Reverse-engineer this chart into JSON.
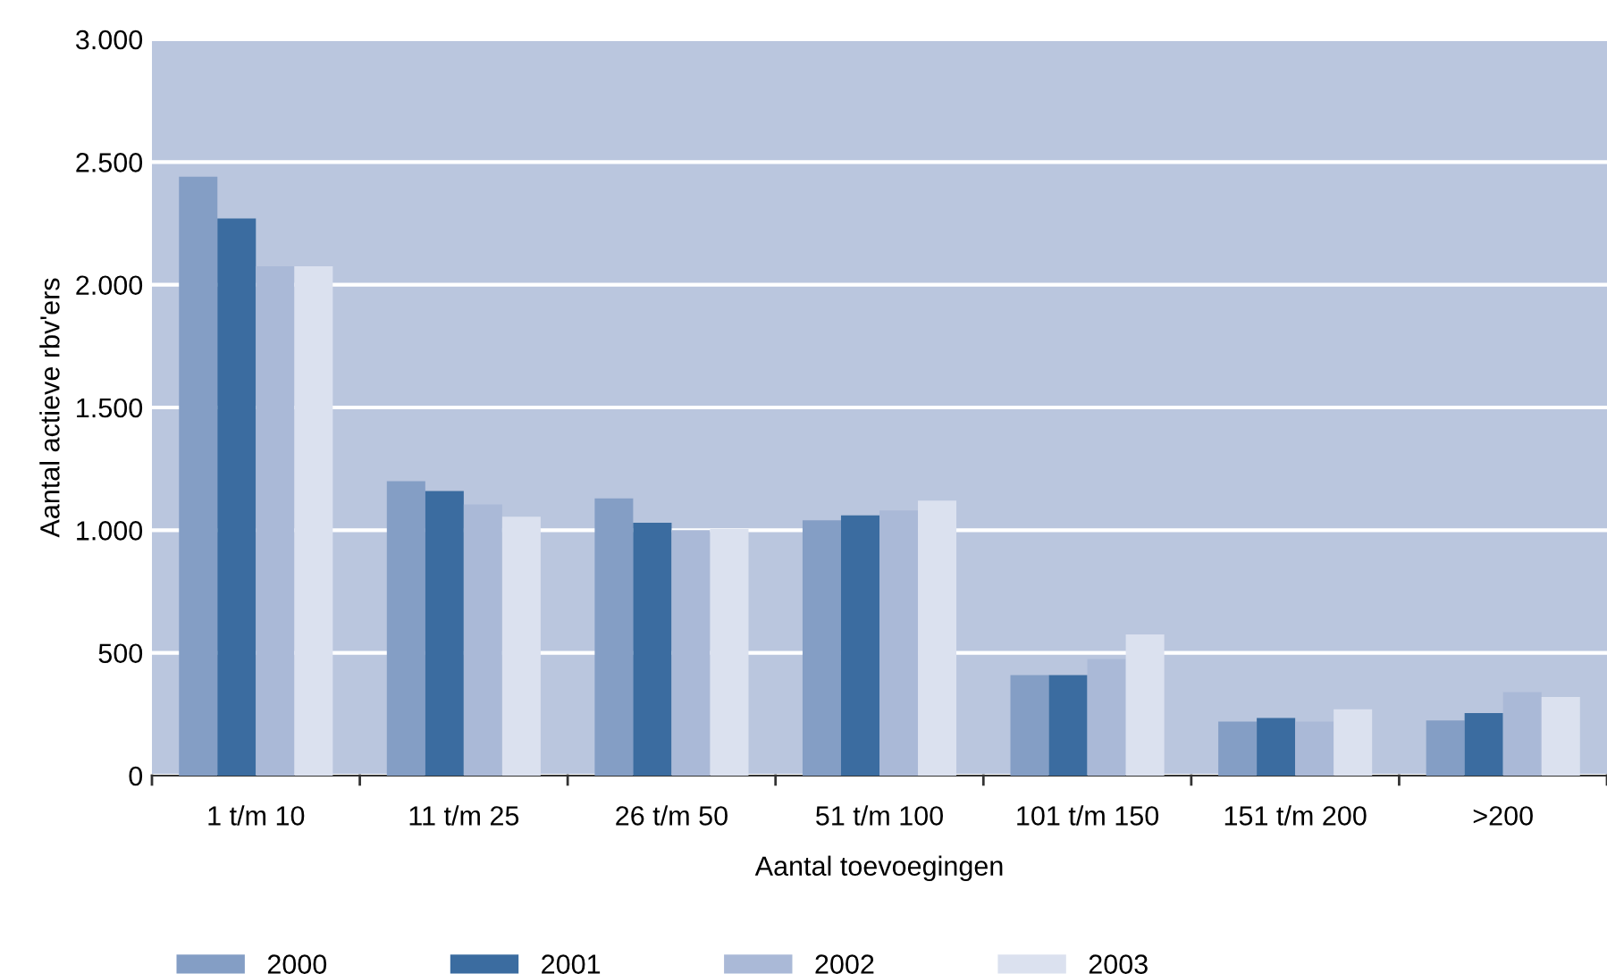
{
  "chart_data": {
    "type": "bar",
    "xlabel": "Aantal toevoegingen",
    "ylabel": "Aantal actieve rbv'ers",
    "categories": [
      "1 t/m 10",
      "11 t/m 25",
      "26 t/m 50",
      "51 t/m 100",
      "101 t/m 150",
      "151 t/m 200",
      ">200"
    ],
    "series": [
      {
        "name": "2000",
        "color": "#849ec5",
        "values": [
          2440,
          1200,
          1130,
          1040,
          410,
          220,
          225
        ]
      },
      {
        "name": "2001",
        "color": "#3b6ca0",
        "values": [
          2270,
          1160,
          1030,
          1060,
          410,
          235,
          255
        ]
      },
      {
        "name": "2002",
        "color": "#aab9d7",
        "values": [
          2075,
          1105,
          1000,
          1080,
          475,
          220,
          340
        ]
      },
      {
        "name": "2003",
        "color": "#dbe1ef",
        "values": [
          2075,
          1055,
          1005,
          1120,
          575,
          270,
          320
        ]
      }
    ],
    "ylim": [
      0,
      3000
    ],
    "yticks": [
      {
        "value": 0,
        "label": "0"
      },
      {
        "value": 500,
        "label": "500"
      },
      {
        "value": 1000,
        "label": "1.000"
      },
      {
        "value": 1500,
        "label": "1.500"
      },
      {
        "value": 2000,
        "label": "2.000"
      },
      {
        "value": 2500,
        "label": "2.500"
      },
      {
        "value": 3000,
        "label": "3.000"
      }
    ],
    "grid": "y",
    "legend": "bottom left"
  }
}
